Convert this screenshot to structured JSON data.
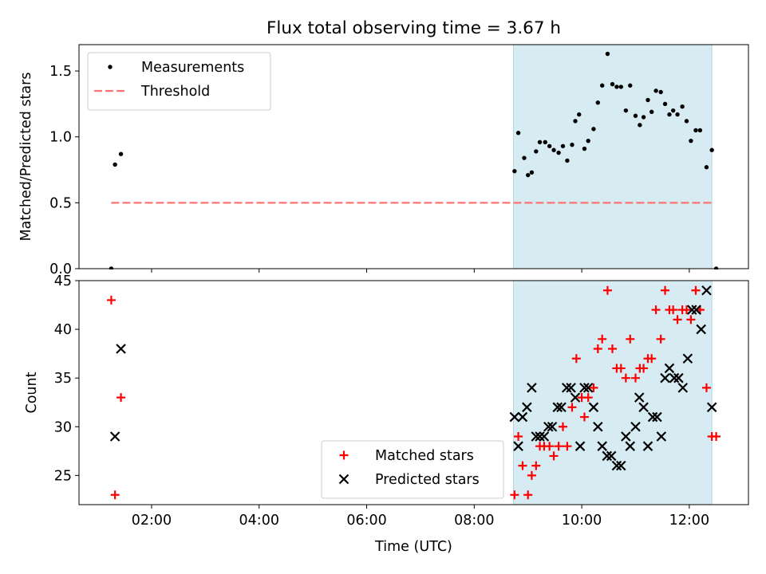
{
  "chart_data": [
    {
      "type": "scatter",
      "title": "Flux total observing time = 3.67 h",
      "xlabel": "",
      "ylabel": "Matched/Predicted stars",
      "xlim": [
        0.65,
        13.1
      ],
      "ylim": [
        0.0,
        1.7
      ],
      "yticks": [
        0.0,
        0.5,
        1.0,
        1.5
      ],
      "ytick_labels": [
        "0.0",
        "0.5",
        "1.0",
        "1.5"
      ],
      "legend_position": "upper-left",
      "shaded_region": {
        "x_start": 8.73,
        "x_end": 12.42,
        "color": "#add8e6"
      },
      "series": [
        {
          "name": "Measurements",
          "marker": "dot",
          "color": "#000000",
          "points": [
            [
              1.25,
              0.0
            ],
            [
              1.32,
              0.79
            ],
            [
              1.43,
              0.87
            ],
            [
              8.75,
              0.74
            ],
            [
              8.82,
              1.03
            ],
            [
              8.93,
              0.84
            ],
            [
              9.0,
              0.71
            ],
            [
              9.07,
              0.73
            ],
            [
              9.15,
              0.89
            ],
            [
              9.22,
              0.96
            ],
            [
              9.32,
              0.96
            ],
            [
              9.4,
              0.93
            ],
            [
              9.48,
              0.9
            ],
            [
              9.57,
              0.88
            ],
            [
              9.65,
              0.93
            ],
            [
              9.73,
              0.82
            ],
            [
              9.82,
              0.94
            ],
            [
              9.88,
              1.12
            ],
            [
              9.95,
              1.17
            ],
            [
              10.05,
              0.91
            ],
            [
              10.12,
              0.97
            ],
            [
              10.22,
              1.06
            ],
            [
              10.3,
              1.26
            ],
            [
              10.38,
              1.39
            ],
            [
              10.48,
              1.63
            ],
            [
              10.57,
              1.4
            ],
            [
              10.65,
              1.38
            ],
            [
              10.73,
              1.38
            ],
            [
              10.82,
              1.2
            ],
            [
              10.9,
              1.39
            ],
            [
              11.0,
              1.16
            ],
            [
              11.08,
              1.09
            ],
            [
              11.15,
              1.15
            ],
            [
              11.23,
              1.28
            ],
            [
              11.3,
              1.19
            ],
            [
              11.38,
              1.35
            ],
            [
              11.47,
              1.34
            ],
            [
              11.55,
              1.25
            ],
            [
              11.63,
              1.17
            ],
            [
              11.7,
              1.2
            ],
            [
              11.78,
              1.17
            ],
            [
              11.87,
              1.23
            ],
            [
              11.95,
              1.12
            ],
            [
              12.03,
              0.97
            ],
            [
              12.12,
              1.05
            ],
            [
              12.2,
              1.05
            ],
            [
              12.32,
              0.77
            ],
            [
              12.42,
              0.9
            ],
            [
              12.5,
              0.0
            ]
          ]
        },
        {
          "name": "Threshold",
          "marker": "dashed-line",
          "color": "#ff7373",
          "points": [
            [
              1.25,
              0.5
            ],
            [
              12.42,
              0.5
            ]
          ]
        }
      ]
    },
    {
      "type": "scatter",
      "title": "",
      "xlabel": "Time (UTC)",
      "ylabel": "Count",
      "xlim": [
        0.65,
        13.1
      ],
      "ylim": [
        22,
        45
      ],
      "yticks": [
        25,
        30,
        35,
        40,
        45
      ],
      "ytick_labels": [
        "25",
        "30",
        "35",
        "40",
        "45"
      ],
      "xticks": [
        2,
        4,
        6,
        8,
        10,
        12
      ],
      "xtick_labels": [
        "02:00",
        "04:00",
        "06:00",
        "08:00",
        "10:00",
        "12:00"
      ],
      "legend_position": "lower-center",
      "shaded_region": {
        "x_start": 8.73,
        "x_end": 12.42,
        "color": "#add8e6"
      },
      "series": [
        {
          "name": "Matched stars",
          "marker": "plus",
          "color": "#ff0000",
          "points": [
            [
              1.25,
              43
            ],
            [
              1.32,
              23
            ],
            [
              1.43,
              33
            ],
            [
              8.75,
              23
            ],
            [
              8.82,
              29
            ],
            [
              8.9,
              26
            ],
            [
              9.0,
              23
            ],
            [
              9.07,
              25
            ],
            [
              9.15,
              26
            ],
            [
              9.22,
              28
            ],
            [
              9.3,
              28
            ],
            [
              9.4,
              28
            ],
            [
              9.48,
              27
            ],
            [
              9.57,
              28
            ],
            [
              9.65,
              30
            ],
            [
              9.73,
              28
            ],
            [
              9.82,
              32
            ],
            [
              9.9,
              37
            ],
            [
              10.0,
              33
            ],
            [
              10.05,
              31
            ],
            [
              10.12,
              33
            ],
            [
              10.22,
              34
            ],
            [
              10.3,
              38
            ],
            [
              10.38,
              39
            ],
            [
              10.48,
              44
            ],
            [
              10.57,
              38
            ],
            [
              10.65,
              36
            ],
            [
              10.73,
              36
            ],
            [
              10.82,
              35
            ],
            [
              10.9,
              39
            ],
            [
              11.0,
              35
            ],
            [
              11.08,
              36
            ],
            [
              11.15,
              36
            ],
            [
              11.23,
              37
            ],
            [
              11.3,
              37
            ],
            [
              11.38,
              42
            ],
            [
              11.47,
              39
            ],
            [
              11.55,
              44
            ],
            [
              11.63,
              42
            ],
            [
              11.7,
              42
            ],
            [
              11.78,
              41
            ],
            [
              11.87,
              42
            ],
            [
              11.95,
              42
            ],
            [
              12.03,
              41
            ],
            [
              12.12,
              44
            ],
            [
              12.2,
              42
            ],
            [
              12.32,
              34
            ],
            [
              12.42,
              29
            ],
            [
              12.5,
              29
            ]
          ]
        },
        {
          "name": "Predicted stars",
          "marker": "x",
          "color": "#000000",
          "points": [
            [
              1.32,
              29
            ],
            [
              1.43,
              38
            ],
            [
              8.75,
              31
            ],
            [
              8.82,
              28
            ],
            [
              8.9,
              31
            ],
            [
              8.98,
              32
            ],
            [
              9.07,
              34
            ],
            [
              9.15,
              29
            ],
            [
              9.22,
              29
            ],
            [
              9.3,
              29
            ],
            [
              9.38,
              30
            ],
            [
              9.45,
              30
            ],
            [
              9.55,
              32
            ],
            [
              9.62,
              32
            ],
            [
              9.72,
              34
            ],
            [
              9.8,
              34
            ],
            [
              9.88,
              33
            ],
            [
              9.97,
              28
            ],
            [
              10.05,
              34
            ],
            [
              10.12,
              34
            ],
            [
              10.22,
              32
            ],
            [
              10.3,
              30
            ],
            [
              10.38,
              28
            ],
            [
              10.47,
              27
            ],
            [
              10.55,
              27
            ],
            [
              10.65,
              26
            ],
            [
              10.73,
              26
            ],
            [
              10.82,
              29
            ],
            [
              10.9,
              28
            ],
            [
              11.0,
              30
            ],
            [
              11.07,
              33
            ],
            [
              11.15,
              32
            ],
            [
              11.23,
              28
            ],
            [
              11.32,
              31
            ],
            [
              11.4,
              31
            ],
            [
              11.48,
              29
            ],
            [
              11.55,
              35
            ],
            [
              11.63,
              36
            ],
            [
              11.72,
              35
            ],
            [
              11.8,
              35
            ],
            [
              11.88,
              34
            ],
            [
              11.97,
              37
            ],
            [
              12.05,
              42
            ],
            [
              12.13,
              42
            ],
            [
              12.22,
              40
            ],
            [
              12.32,
              44
            ],
            [
              12.42,
              32
            ]
          ]
        }
      ]
    }
  ]
}
